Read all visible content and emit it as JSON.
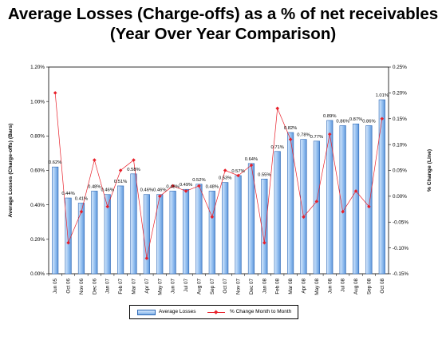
{
  "header": {
    "title_line1": "Average Losses (Charge-offs) as a % of net receivables",
    "title_line2": "(Year Over Year Comparison)"
  },
  "chart_data": {
    "type": "bar+line",
    "categories": [
      "Jun 05",
      "Oct 06",
      "Nov 06",
      "Dec 06",
      "Jan 07",
      "Feb 07",
      "Mar 07",
      "Apr 07",
      "May 07",
      "Jun 07",
      "Jul 07",
      "Aug 07",
      "Sep 07",
      "Oct 07",
      "Nov 07",
      "Dec 07",
      "Jan 08",
      "Feb 08",
      "Mar 08",
      "Apr 08",
      "May 08",
      "Jun 08",
      "Jul 08",
      "Aug 08",
      "Sep 08",
      "Oct 08"
    ],
    "y_left": {
      "label": "Average Losses (Charge-offs) (Bars)",
      "ylim": [
        0,
        1.2
      ],
      "ticks": [
        "0.00%",
        "0.20%",
        "0.40%",
        "0.60%",
        "0.80%",
        "1.00%",
        "1.20%"
      ]
    },
    "y_right": {
      "label": "% Change (Line)",
      "ylim": [
        -0.15,
        0.25
      ],
      "ticks": [
        "-0.15%",
        "-0.10%",
        "-0.05%",
        "0.00%",
        "0.05%",
        "0.10%",
        "0.15%",
        "0.20%",
        "0.25%"
      ]
    },
    "series": [
      {
        "name": "Average Losses",
        "type": "bar",
        "axis": "left",
        "values": [
          0.62,
          0.44,
          0.41,
          0.48,
          0.46,
          0.51,
          0.58,
          0.46,
          0.46,
          0.48,
          0.49,
          0.52,
          0.48,
          0.53,
          0.57,
          0.64,
          0.55,
          0.71,
          0.82,
          0.78,
          0.77,
          0.89,
          0.86,
          0.87,
          0.86,
          1.01
        ],
        "data_labels": [
          "0.62%",
          "0.44%",
          "0.41%",
          "0.48%",
          "0.46%",
          "0.51%",
          "0.58%",
          "0.46%",
          "0.46%",
          "0.48%",
          "0.49%",
          "0.52%",
          "0.48%",
          "0.53%",
          "0.57%",
          "0.64%",
          "0.55%",
          "0.71%",
          "0.82%",
          "0.78%",
          "0.77%",
          "0.89%",
          "0.86%",
          "0.87%",
          "0.86%",
          "1.01%"
        ],
        "color": "#7fb0e8"
      },
      {
        "name": "% Change Month to Month",
        "type": "line",
        "axis": "right",
        "values": [
          0.2,
          -0.09,
          -0.03,
          0.07,
          -0.02,
          0.05,
          0.07,
          -0.12,
          0.0,
          0.02,
          0.01,
          0.02,
          -0.04,
          0.05,
          0.04,
          0.06,
          -0.09,
          0.17,
          0.11,
          -0.04,
          -0.01,
          0.12,
          -0.03,
          0.01,
          -0.02,
          0.15
        ],
        "color": "#e8202a"
      }
    ],
    "legend_position": "bottom",
    "grid": false
  }
}
